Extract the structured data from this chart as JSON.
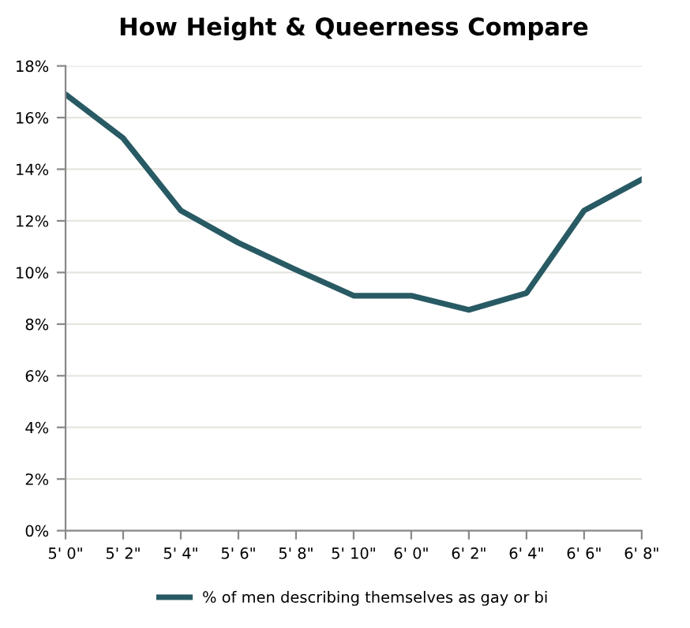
{
  "chart_data": {
    "type": "line",
    "title": "How Height & Queerness Compare",
    "categories": [
      "5' 0\"",
      "5' 2\"",
      "5' 4\"",
      "5' 6\"",
      "5' 8\"",
      "5' 10\"",
      "6' 0\"",
      "6' 2\"",
      "6' 4\"",
      "6' 6\"",
      "6' 8\""
    ],
    "series": [
      {
        "name": "% of men describing themselves as gay or bi",
        "color": "#285a64",
        "values": [
          16.9,
          15.2,
          12.4,
          11.15,
          10.1,
          9.1,
          9.1,
          8.55,
          9.2,
          12.4,
          13.6
        ]
      }
    ],
    "ylim": [
      0,
      18
    ],
    "yticks": [
      {
        "value": 0,
        "label": "0%"
      },
      {
        "value": 2,
        "label": "2%"
      },
      {
        "value": 4,
        "label": "4%"
      },
      {
        "value": 6,
        "label": "6%"
      },
      {
        "value": 8,
        "label": "8%"
      },
      {
        "value": 10,
        "label": "10%"
      },
      {
        "value": 12,
        "label": "12%"
      },
      {
        "value": 14,
        "label": "14%"
      },
      {
        "value": 16,
        "label": "16%"
      },
      {
        "value": 18,
        "label": "18%"
      }
    ],
    "grid": "y",
    "legend": "bottom",
    "marker": "none",
    "line_style": "solid"
  }
}
